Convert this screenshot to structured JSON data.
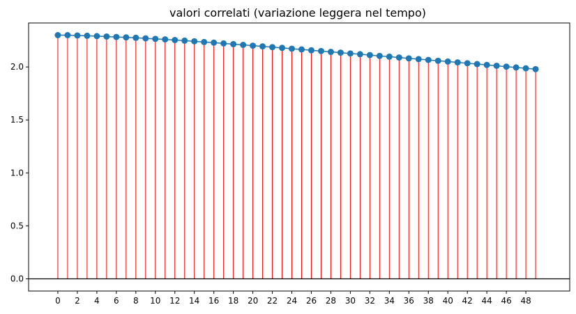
{
  "chart_data": {
    "type": "stem",
    "title": "valori correlati (variazione leggera nel tempo)",
    "xlabel": "",
    "ylabel": "",
    "x": [
      0,
      1,
      2,
      3,
      4,
      5,
      6,
      7,
      8,
      9,
      10,
      11,
      12,
      13,
      14,
      15,
      16,
      17,
      18,
      19,
      20,
      21,
      22,
      23,
      24,
      25,
      26,
      27,
      28,
      29,
      30,
      31,
      32,
      33,
      34,
      35,
      36,
      37,
      38,
      39,
      40,
      41,
      42,
      43,
      44,
      45,
      46,
      47,
      48,
      49
    ],
    "values": [
      2.3,
      2.3,
      2.297,
      2.294,
      2.291,
      2.287,
      2.283,
      2.279,
      2.275,
      2.27,
      2.265,
      2.26,
      2.254,
      2.248,
      2.242,
      2.235,
      2.229,
      2.222,
      2.215,
      2.208,
      2.201,
      2.194,
      2.187,
      2.18,
      2.172,
      2.165,
      2.157,
      2.15,
      2.142,
      2.135,
      2.127,
      2.12,
      2.112,
      2.104,
      2.097,
      2.089,
      2.081,
      2.074,
      2.066,
      2.058,
      2.051,
      2.043,
      2.035,
      2.027,
      2.019,
      2.011,
      2.003,
      1.995,
      1.987,
      1.979
    ],
    "xticks": [
      0,
      2,
      4,
      6,
      8,
      10,
      12,
      14,
      16,
      18,
      20,
      22,
      24,
      26,
      28,
      30,
      32,
      34,
      36,
      38,
      40,
      42,
      44,
      46,
      48
    ],
    "xlim": [
      -3.0,
      52.5
    ],
    "yticks": [
      0.0,
      0.5,
      1.0,
      1.5,
      2.0
    ],
    "ytick_labels": [
      "0.0",
      "0.5",
      "1.0",
      "1.5",
      "2.0"
    ],
    "ylim": [
      -0.115,
      2.415
    ],
    "baseline": 0,
    "grid": false,
    "colors": {
      "stem": "#ff0000",
      "marker": "#1f77b4",
      "baseline": "#000000",
      "axis": "#000000"
    }
  }
}
